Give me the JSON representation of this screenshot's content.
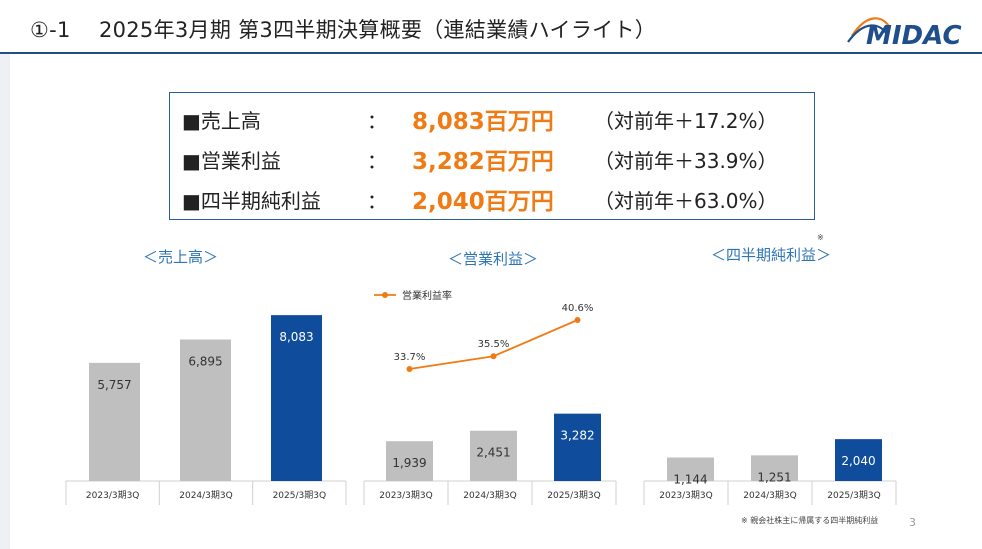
{
  "header": {
    "title": "①-1　 2025年3月期 第3四半期決算概要（連結業績ハイライト）",
    "logo_text": "MIDAC"
  },
  "summary": {
    "rows": [
      {
        "label": "■売上高",
        "colon": "：",
        "value": "8,083百万円",
        "yoy": "（対前年＋17.2%）"
      },
      {
        "label": "■営業利益",
        "colon": "：",
        "value": "3,282百万円",
        "yoy": "（対前年＋33.9%）"
      },
      {
        "label": "■四半期純利益",
        "colon": "：",
        "value": "2,040百万円",
        "yoy": "（対前年＋63.0%）"
      }
    ]
  },
  "colors": {
    "prior_bar": "#bfbfbf",
    "current_bar": "#0f4c9b",
    "value_orange": "#f07b14",
    "title_blue": "#2e75b6",
    "line_orange": "#f07b14"
  },
  "chart_data": [
    {
      "type": "bar",
      "title": "＜売上高＞",
      "categories": [
        "2023/3期3Q",
        "2024/3期3Q",
        "2025/3期3Q"
      ],
      "values": [
        5757,
        6895,
        8083
      ],
      "labels": [
        "5,757",
        "6,895",
        "8,083"
      ]
    },
    {
      "type": "bar",
      "title": "＜営業利益＞",
      "categories": [
        "2023/3期3Q",
        "2024/3期3Q",
        "2025/3期3Q"
      ],
      "values": [
        1939,
        2451,
        3282
      ],
      "labels": [
        "1,939",
        "2,451",
        "3,282"
      ],
      "line_series": {
        "name": "営業利益率",
        "values": [
          33.7,
          35.5,
          40.6
        ],
        "labels": [
          "33.7%",
          "35.5%",
          "40.6%"
        ]
      }
    },
    {
      "type": "bar",
      "title": "＜四半期純利益＞",
      "title_note": "※",
      "categories": [
        "2023/3期3Q",
        "2024/3期3Q",
        "2025/3期3Q"
      ],
      "values": [
        1144,
        1251,
        2040
      ],
      "labels": [
        "1,144",
        "1,251",
        "2,040"
      ]
    }
  ],
  "footnote": "※ 親会社株主に帰属する四半期純利益",
  "page_number": "3"
}
